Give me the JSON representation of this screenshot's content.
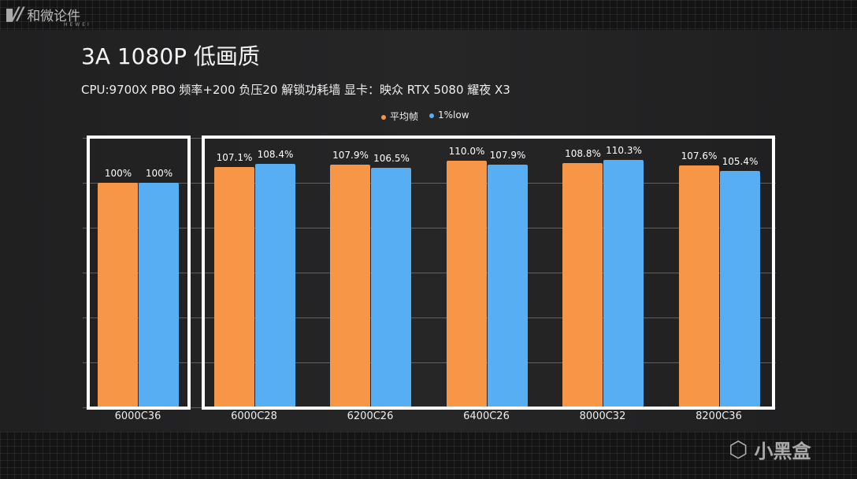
{
  "brand": {
    "logo_cn": "和微论件",
    "logo_en": "HEWEI",
    "watermark": "小黑盒"
  },
  "chart_data": {
    "type": "bar",
    "title": "3A 1080P 低画质",
    "subtitle": "CPU:9700X PBO 频率+200 负压20 解锁功耗墙 显卡：映众 RTX 5080 耀夜 X3",
    "categories": [
      "6000C36",
      "6000C28",
      "6200C26",
      "6400C26",
      "8000C32",
      "8200C36"
    ],
    "series": [
      {
        "name": "平均帧",
        "color": "#f79646",
        "values": [
          100,
          107.1,
          107.9,
          110.0,
          108.8,
          107.6
        ],
        "labels": [
          "100%",
          "107.1%",
          "107.9%",
          "110.0%",
          "108.8%",
          "107.6%"
        ]
      },
      {
        "name": "1%low",
        "color": "#58aef2",
        "values": [
          100,
          108.4,
          106.5,
          107.9,
          110.3,
          105.4
        ],
        "labels": [
          "100%",
          "108.4%",
          "106.5%",
          "107.9%",
          "110.3%",
          "105.4%"
        ]
      }
    ],
    "ylim": [
      0,
      120
    ],
    "grid": true,
    "legend": "top-center",
    "xlabel": "",
    "ylabel": ""
  }
}
